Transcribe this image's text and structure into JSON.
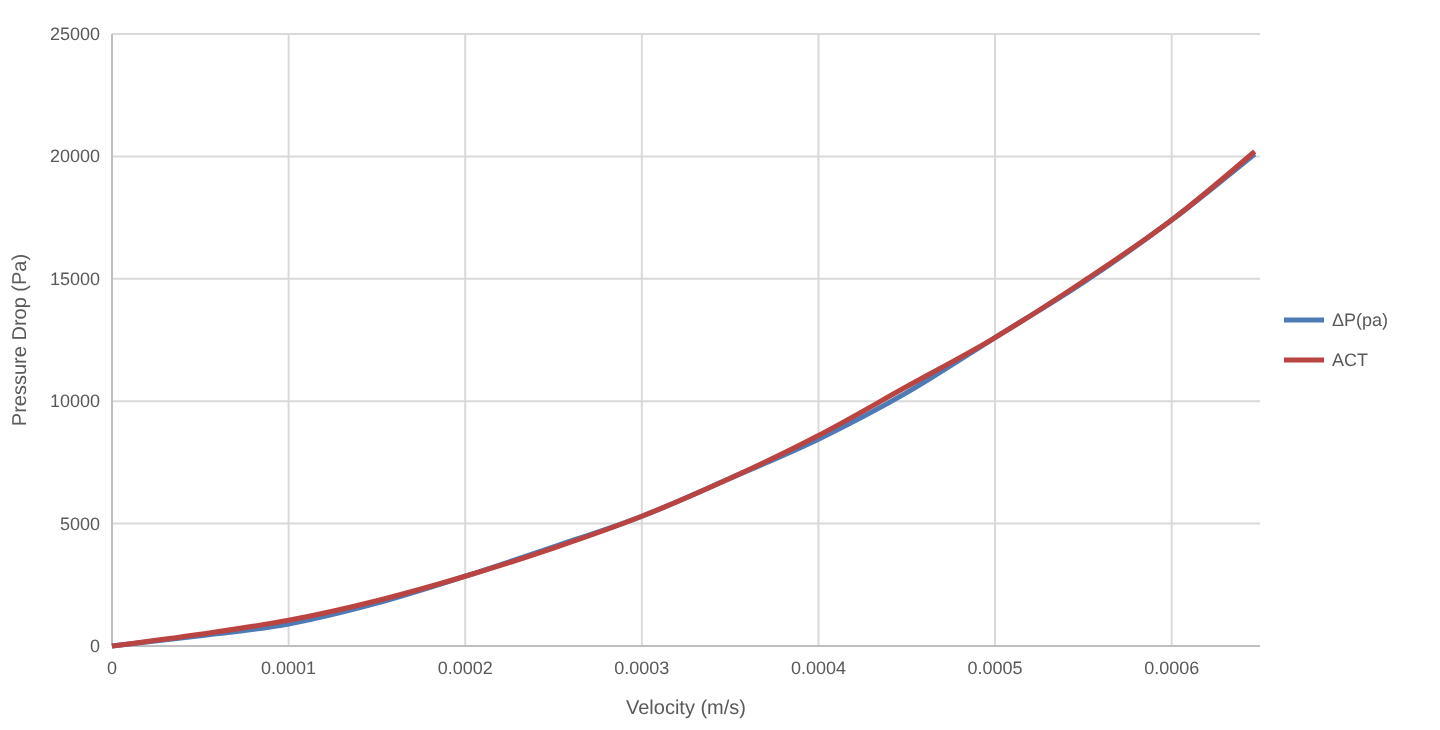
{
  "chart_data": {
    "type": "line",
    "xlabel": "Velocity (m/s)",
    "ylabel": "Pressure Drop (Pa)",
    "x": [
      0,
      5e-05,
      0.0001,
      0.00015,
      0.0002,
      0.00025,
      0.0003,
      0.00035,
      0.0004,
      0.00045,
      0.0005,
      0.00055,
      0.0006,
      0.000647
    ],
    "series": [
      {
        "name": "ΔP(pa)",
        "color": "#4e7bb5",
        "values": [
          0,
          420,
          900,
          1750,
          2850,
          4050,
          5300,
          6850,
          8450,
          10350,
          12600,
          14850,
          17400,
          20100
        ]
      },
      {
        "name": "ACT",
        "color": "#b94441",
        "values": [
          0,
          480,
          1050,
          1850,
          2850,
          4000,
          5300,
          6850,
          8600,
          10600,
          12600,
          14900,
          17400,
          20200
        ]
      }
    ],
    "xlim": [
      0,
      0.00065
    ],
    "xticks": [
      0,
      0.0001,
      0.0002,
      0.0003,
      0.0004,
      0.0005,
      0.0006
    ],
    "ylim": [
      0,
      25000
    ],
    "yticks": [
      0,
      5000,
      10000,
      15000,
      20000,
      25000
    ],
    "grid": true,
    "legend": "right",
    "marker": "none",
    "line_style": "solid"
  }
}
